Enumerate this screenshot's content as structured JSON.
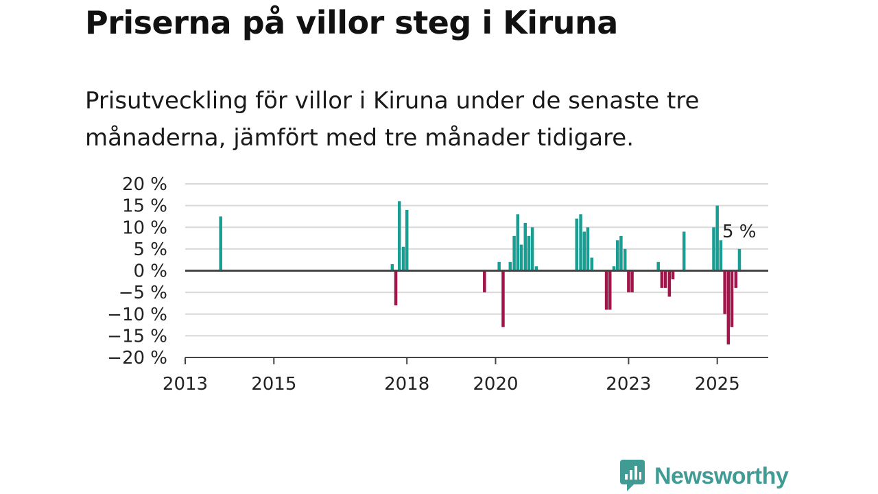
{
  "header": {
    "title": "Priserna på villor steg i Kiruna",
    "subtitle": "Prisutveckling för villor i Kiruna under de senaste tre månaderna, jämfört med tre månader tidigare."
  },
  "colors": {
    "positive": "#1a9e93",
    "negative": "#a0154a",
    "grid": "#d8d8d8",
    "zero_line": "#444444",
    "brand": "#3f9b93"
  },
  "brand": {
    "name": "Newsworthy",
    "icon": "chart-bubble-icon"
  },
  "chart_data": {
    "type": "bar",
    "title": "Priserna på villor steg i Kiruna",
    "subtitle": "Prisutveckling för villor i Kiruna under de senaste tre månaderna, jämfört med tre månader tidigare.",
    "xlabel": "",
    "ylabel": "",
    "ylim": [
      -20,
      20
    ],
    "xlim": [
      2013,
      2026.15
    ],
    "y_ticks": [
      {
        "v": 20,
        "label": "20 %"
      },
      {
        "v": 15,
        "label": "15 %"
      },
      {
        "v": 10,
        "label": "10 %"
      },
      {
        "v": 5,
        "label": "5 %"
      },
      {
        "v": 0,
        "label": "0 %"
      },
      {
        "v": -5,
        "label": "−5 %"
      },
      {
        "v": -10,
        "label": "−10 %"
      },
      {
        "v": -15,
        "label": "−15 %"
      },
      {
        "v": -20,
        "label": "−20 %"
      }
    ],
    "x_ticks": [
      {
        "v": 2013,
        "label": "2013"
      },
      {
        "v": 2015,
        "label": "2015"
      },
      {
        "v": 2018,
        "label": "2018"
      },
      {
        "v": 2020,
        "label": "2020"
      },
      {
        "v": 2023,
        "label": "2023"
      },
      {
        "v": 2025,
        "label": "2025"
      }
    ],
    "grid": true,
    "annotation": {
      "text": "5 %"
    },
    "points": [
      {
        "x": 2013.8,
        "y": 12.5
      },
      {
        "x": 2017.67,
        "y": 1.5
      },
      {
        "x": 2017.75,
        "y": -8
      },
      {
        "x": 2017.83,
        "y": 16
      },
      {
        "x": 2017.92,
        "y": 5.5
      },
      {
        "x": 2018.0,
        "y": 14
      },
      {
        "x": 2019.75,
        "y": -5
      },
      {
        "x": 2020.08,
        "y": 2
      },
      {
        "x": 2020.17,
        "y": -13
      },
      {
        "x": 2020.33,
        "y": 2
      },
      {
        "x": 2020.42,
        "y": 8
      },
      {
        "x": 2020.5,
        "y": 13
      },
      {
        "x": 2020.58,
        "y": 6
      },
      {
        "x": 2020.67,
        "y": 11
      },
      {
        "x": 2020.75,
        "y": 8
      },
      {
        "x": 2020.83,
        "y": 10
      },
      {
        "x": 2020.92,
        "y": 1
      },
      {
        "x": 2021.83,
        "y": 12
      },
      {
        "x": 2021.92,
        "y": 13
      },
      {
        "x": 2022.0,
        "y": 9
      },
      {
        "x": 2022.08,
        "y": 10
      },
      {
        "x": 2022.17,
        "y": 3
      },
      {
        "x": 2022.5,
        "y": -9
      },
      {
        "x": 2022.58,
        "y": -9
      },
      {
        "x": 2022.67,
        "y": 1
      },
      {
        "x": 2022.75,
        "y": 7
      },
      {
        "x": 2022.83,
        "y": 8
      },
      {
        "x": 2022.92,
        "y": 5
      },
      {
        "x": 2023.0,
        "y": -5
      },
      {
        "x": 2023.08,
        "y": -5
      },
      {
        "x": 2023.67,
        "y": 2
      },
      {
        "x": 2023.75,
        "y": -4
      },
      {
        "x": 2023.83,
        "y": -4
      },
      {
        "x": 2023.92,
        "y": -6
      },
      {
        "x": 2024.0,
        "y": -2
      },
      {
        "x": 2024.25,
        "y": 9
      },
      {
        "x": 2024.92,
        "y": 10
      },
      {
        "x": 2025.0,
        "y": 15
      },
      {
        "x": 2025.08,
        "y": 7
      },
      {
        "x": 2025.17,
        "y": -10
      },
      {
        "x": 2025.25,
        "y": -17
      },
      {
        "x": 2025.33,
        "y": -13
      },
      {
        "x": 2025.42,
        "y": -4
      },
      {
        "x": 2025.5,
        "y": 5
      }
    ]
  }
}
